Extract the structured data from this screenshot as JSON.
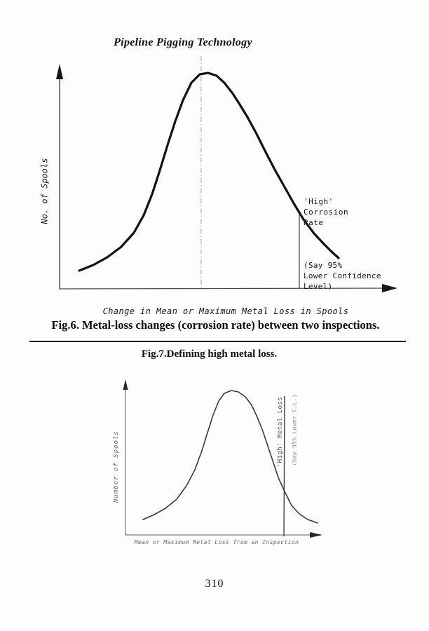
{
  "header": {
    "title": "Pipeline Pigging Technology"
  },
  "footer": {
    "page_number": "310"
  },
  "chart_data": [
    {
      "id": "fig6",
      "type": "line",
      "caption": "Fig.6. Metal-loss changes (corrosion rate) between two inspections.",
      "ylabel": "No. of Spools",
      "xlabel": "Change in Mean or Maximum Metal Loss in Spools",
      "axes_unlabeled": true,
      "annotations": {
        "high_corrosion": [
          "'High'",
          "Corrosion",
          "Rate"
        ],
        "confidence": [
          "(Say 95%",
          "Lower Confidence",
          "Level)"
        ]
      },
      "curve": [
        [
          68,
          311
        ],
        [
          88,
          303
        ],
        [
          108,
          292
        ],
        [
          128,
          277
        ],
        [
          146,
          257
        ],
        [
          160,
          232
        ],
        [
          172,
          202
        ],
        [
          183,
          168
        ],
        [
          194,
          132
        ],
        [
          205,
          98
        ],
        [
          216,
          68
        ],
        [
          228,
          43
        ],
        [
          240,
          31
        ],
        [
          252,
          29
        ],
        [
          264,
          33
        ],
        [
          275,
          43
        ],
        [
          286,
          57
        ],
        [
          297,
          74
        ],
        [
          308,
          92
        ],
        [
          320,
          114
        ],
        [
          333,
          140
        ],
        [
          347,
          167
        ],
        [
          360,
          190
        ],
        [
          374,
          215
        ],
        [
          388,
          238
        ],
        [
          403,
          258
        ],
        [
          418,
          274
        ],
        [
          428,
          284
        ],
        [
          438,
          293
        ]
      ]
    },
    {
      "id": "fig7",
      "type": "line",
      "caption": "Fig.7.Defining high metal loss.",
      "ylabel": "Number of Spools",
      "xlabel": "Mean or Maximum Metal Loss from an Inspection",
      "axes_unlabeled": true,
      "annotations": {
        "high_metal": "'High' Metal Loss",
        "confidence": "(Say 95% Lower C.L.)"
      },
      "curve": [
        [
          44,
          206
        ],
        [
          60,
          199
        ],
        [
          76,
          190
        ],
        [
          92,
          177
        ],
        [
          106,
          158
        ],
        [
          118,
          135
        ],
        [
          128,
          108
        ],
        [
          136,
          82
        ],
        [
          144,
          57
        ],
        [
          152,
          37
        ],
        [
          160,
          26
        ],
        [
          170,
          22
        ],
        [
          180,
          24
        ],
        [
          190,
          31
        ],
        [
          199,
          43
        ],
        [
          207,
          60
        ],
        [
          215,
          80
        ],
        [
          222,
          101
        ],
        [
          229,
          122
        ],
        [
          237,
          146
        ],
        [
          246,
          166
        ],
        [
          256,
          186
        ],
        [
          267,
          198
        ],
        [
          279,
          206
        ],
        [
          293,
          211
        ]
      ]
    }
  ],
  "colors": {
    "paper": "#fdfdfc",
    "ink": "#141414",
    "faint_ink": "#444444",
    "axis_grey": "#555555"
  }
}
